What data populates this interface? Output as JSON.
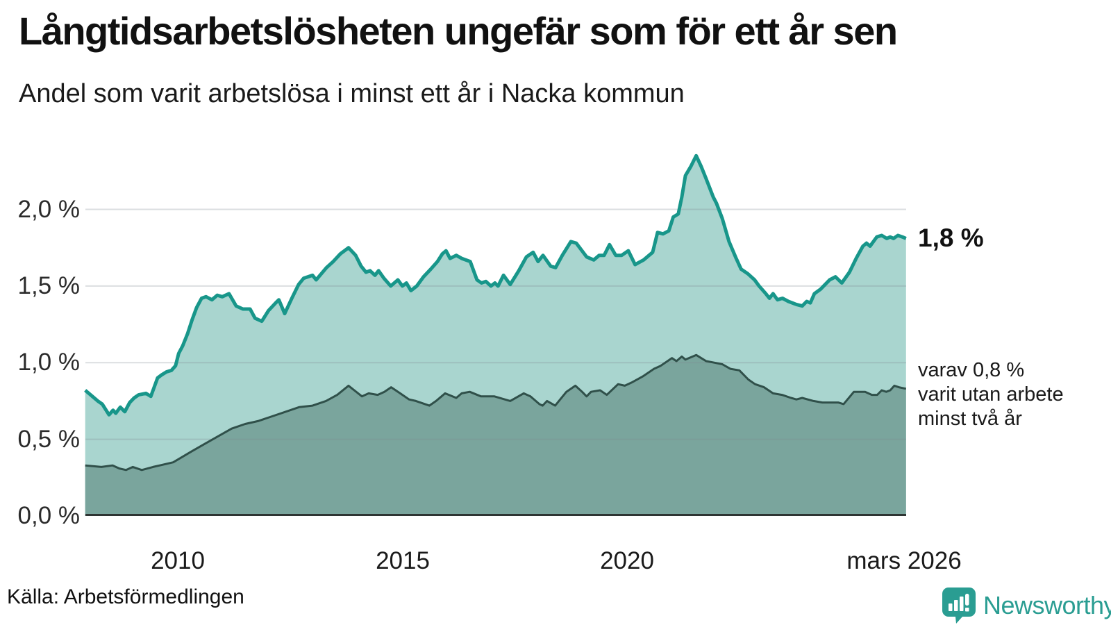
{
  "header": {
    "title": "Långtidsarbetslösheten ungefär som för ett år sen",
    "subtitle": "Andel som varit arbetslösa i minst ett år i Nacka kommun"
  },
  "annotations": {
    "end_value_label": "1,8 %",
    "secondary_note": "varav 0,8 %\nvarit utan arbete\nminst två år"
  },
  "footer": {
    "source": "Källa: Arbetsförmedlingen",
    "brand_name": "Newsworthy"
  },
  "colors": {
    "accent_teal": "#18968a",
    "area_light": "#a9d5cf",
    "area_dark": "#7aa59d",
    "dark_line": "#30504a",
    "baseline": "#2e3533",
    "gridline": "rgba(125,135,145,0.28)",
    "brand_teal": "#2a9d92"
  },
  "chart_data": {
    "type": "area",
    "title": "Långtidsarbetslösheten ungefär som för ett år sen",
    "subtitle": "Andel som varit arbetslösa i minst ett år i Nacka kommun",
    "unit": "%",
    "x_domain": [
      2007.94,
      2026.24
    ],
    "ylim": [
      0,
      2.4
    ],
    "grid": "horizontal",
    "legend_position": "right-annotations",
    "yticks": [
      {
        "value": 0.0,
        "label": "0,0 %"
      },
      {
        "value": 0.5,
        "label": "0,5 %"
      },
      {
        "value": 1.0,
        "label": "1,0 %"
      },
      {
        "value": 1.5,
        "label": "1,5 %"
      },
      {
        "value": 2.0,
        "label": "2,0 %"
      }
    ],
    "xticks": [
      {
        "value": 2010,
        "label": "2010"
      },
      {
        "value": 2015,
        "label": "2015"
      },
      {
        "value": 2020,
        "label": "2020"
      },
      {
        "value": 2026.17,
        "label": "mars 2026"
      }
    ],
    "series": [
      {
        "id": "unemployed_min_one_year",
        "end_label": "1,8 %",
        "end_value": 1.8,
        "line_color": "#18968a",
        "fill_color": "#a9d5cf",
        "line_width": 5,
        "points": [
          [
            2007.94,
            0.82
          ],
          [
            2008.1,
            0.78
          ],
          [
            2008.22,
            0.75
          ],
          [
            2008.32,
            0.73
          ],
          [
            2008.47,
            0.66
          ],
          [
            2008.56,
            0.69
          ],
          [
            2008.62,
            0.67
          ],
          [
            2008.72,
            0.71
          ],
          [
            2008.82,
            0.68
          ],
          [
            2008.93,
            0.74
          ],
          [
            2009.03,
            0.77
          ],
          [
            2009.13,
            0.79
          ],
          [
            2009.29,
            0.8
          ],
          [
            2009.4,
            0.78
          ],
          [
            2009.55,
            0.9
          ],
          [
            2009.64,
            0.92
          ],
          [
            2009.75,
            0.94
          ],
          [
            2009.86,
            0.95
          ],
          [
            2009.95,
            0.98
          ],
          [
            2010.02,
            1.06
          ],
          [
            2010.11,
            1.11
          ],
          [
            2010.22,
            1.19
          ],
          [
            2010.32,
            1.28
          ],
          [
            2010.42,
            1.36
          ],
          [
            2010.53,
            1.42
          ],
          [
            2010.63,
            1.43
          ],
          [
            2010.76,
            1.41
          ],
          [
            2010.88,
            1.44
          ],
          [
            2010.99,
            1.43
          ],
          [
            2011.14,
            1.45
          ],
          [
            2011.3,
            1.37
          ],
          [
            2011.45,
            1.35
          ],
          [
            2011.61,
            1.35
          ],
          [
            2011.72,
            1.29
          ],
          [
            2011.87,
            1.27
          ],
          [
            2012.02,
            1.34
          ],
          [
            2012.18,
            1.39
          ],
          [
            2012.25,
            1.41
          ],
          [
            2012.38,
            1.32
          ],
          [
            2012.54,
            1.42
          ],
          [
            2012.69,
            1.51
          ],
          [
            2012.8,
            1.55
          ],
          [
            2013.0,
            1.57
          ],
          [
            2013.08,
            1.54
          ],
          [
            2013.31,
            1.62
          ],
          [
            2013.46,
            1.66
          ],
          [
            2013.62,
            1.71
          ],
          [
            2013.8,
            1.75
          ],
          [
            2013.96,
            1.7
          ],
          [
            2014.08,
            1.63
          ],
          [
            2014.19,
            1.59
          ],
          [
            2014.28,
            1.6
          ],
          [
            2014.39,
            1.57
          ],
          [
            2014.47,
            1.6
          ],
          [
            2014.59,
            1.55
          ],
          [
            2014.74,
            1.5
          ],
          [
            2014.9,
            1.54
          ],
          [
            2015.0,
            1.5
          ],
          [
            2015.09,
            1.52
          ],
          [
            2015.19,
            1.47
          ],
          [
            2015.32,
            1.5
          ],
          [
            2015.47,
            1.56
          ],
          [
            2015.63,
            1.61
          ],
          [
            2015.78,
            1.66
          ],
          [
            2015.89,
            1.71
          ],
          [
            2015.97,
            1.73
          ],
          [
            2016.06,
            1.68
          ],
          [
            2016.2,
            1.7
          ],
          [
            2016.32,
            1.68
          ],
          [
            2016.51,
            1.66
          ],
          [
            2016.66,
            1.54
          ],
          [
            2016.76,
            1.52
          ],
          [
            2016.86,
            1.53
          ],
          [
            2016.97,
            1.5
          ],
          [
            2017.06,
            1.52
          ],
          [
            2017.13,
            1.5
          ],
          [
            2017.25,
            1.57
          ],
          [
            2017.4,
            1.51
          ],
          [
            2017.59,
            1.6
          ],
          [
            2017.76,
            1.69
          ],
          [
            2017.91,
            1.72
          ],
          [
            2018.02,
            1.66
          ],
          [
            2018.13,
            1.7
          ],
          [
            2018.3,
            1.63
          ],
          [
            2018.41,
            1.62
          ],
          [
            2018.56,
            1.7
          ],
          [
            2018.75,
            1.79
          ],
          [
            2018.87,
            1.78
          ],
          [
            2019.1,
            1.69
          ],
          [
            2019.26,
            1.67
          ],
          [
            2019.38,
            1.7
          ],
          [
            2019.49,
            1.7
          ],
          [
            2019.61,
            1.77
          ],
          [
            2019.75,
            1.7
          ],
          [
            2019.88,
            1.7
          ],
          [
            2020.03,
            1.73
          ],
          [
            2020.18,
            1.64
          ],
          [
            2020.37,
            1.67
          ],
          [
            2020.57,
            1.72
          ],
          [
            2020.68,
            1.85
          ],
          [
            2020.8,
            1.84
          ],
          [
            2020.93,
            1.86
          ],
          [
            2021.03,
            1.95
          ],
          [
            2021.14,
            1.97
          ],
          [
            2021.22,
            2.08
          ],
          [
            2021.3,
            2.22
          ],
          [
            2021.42,
            2.28
          ],
          [
            2021.54,
            2.35
          ],
          [
            2021.65,
            2.28
          ],
          [
            2021.76,
            2.2
          ],
          [
            2021.92,
            2.08
          ],
          [
            2021.99,
            2.04
          ],
          [
            2022.12,
            1.94
          ],
          [
            2022.27,
            1.79
          ],
          [
            2022.43,
            1.68
          ],
          [
            2022.54,
            1.61
          ],
          [
            2022.69,
            1.58
          ],
          [
            2022.84,
            1.54
          ],
          [
            2022.94,
            1.5
          ],
          [
            2023.09,
            1.45
          ],
          [
            2023.17,
            1.42
          ],
          [
            2023.25,
            1.45
          ],
          [
            2023.35,
            1.41
          ],
          [
            2023.46,
            1.42
          ],
          [
            2023.59,
            1.4
          ],
          [
            2023.77,
            1.38
          ],
          [
            2023.9,
            1.37
          ],
          [
            2024.0,
            1.4
          ],
          [
            2024.08,
            1.39
          ],
          [
            2024.17,
            1.45
          ],
          [
            2024.31,
            1.48
          ],
          [
            2024.51,
            1.54
          ],
          [
            2024.64,
            1.56
          ],
          [
            2024.78,
            1.52
          ],
          [
            2024.95,
            1.59
          ],
          [
            2025.1,
            1.68
          ],
          [
            2025.25,
            1.76
          ],
          [
            2025.33,
            1.78
          ],
          [
            2025.41,
            1.76
          ],
          [
            2025.56,
            1.82
          ],
          [
            2025.67,
            1.83
          ],
          [
            2025.78,
            1.81
          ],
          [
            2025.86,
            1.82
          ],
          [
            2025.93,
            1.81
          ],
          [
            2026.03,
            1.83
          ],
          [
            2026.13,
            1.82
          ],
          [
            2026.21,
            1.81
          ]
        ]
      },
      {
        "id": "unemployed_min_two_years",
        "annotation": "varav 0,8 %\nvarit utan arbete\nminst två år",
        "end_value": 0.8,
        "line_color": "#30504a",
        "fill_color": "#7aa59d",
        "line_width": 3,
        "points": [
          [
            2007.94,
            0.33
          ],
          [
            2008.3,
            0.32
          ],
          [
            2008.55,
            0.33
          ],
          [
            2008.7,
            0.31
          ],
          [
            2008.85,
            0.3
          ],
          [
            2009.0,
            0.32
          ],
          [
            2009.2,
            0.3
          ],
          [
            2009.45,
            0.32
          ],
          [
            2009.6,
            0.33
          ],
          [
            2009.9,
            0.35
          ],
          [
            2010.3,
            0.42
          ],
          [
            2010.6,
            0.47
          ],
          [
            2010.9,
            0.52
          ],
          [
            2011.2,
            0.57
          ],
          [
            2011.5,
            0.6
          ],
          [
            2011.8,
            0.62
          ],
          [
            2012.1,
            0.65
          ],
          [
            2012.4,
            0.68
          ],
          [
            2012.7,
            0.71
          ],
          [
            2013.0,
            0.72
          ],
          [
            2013.3,
            0.75
          ],
          [
            2013.55,
            0.79
          ],
          [
            2013.8,
            0.85
          ],
          [
            2014.1,
            0.78
          ],
          [
            2014.25,
            0.8
          ],
          [
            2014.45,
            0.79
          ],
          [
            2014.6,
            0.81
          ],
          [
            2014.75,
            0.84
          ],
          [
            2014.95,
            0.8
          ],
          [
            2015.15,
            0.76
          ],
          [
            2015.3,
            0.75
          ],
          [
            2015.6,
            0.72
          ],
          [
            2015.75,
            0.75
          ],
          [
            2015.95,
            0.8
          ],
          [
            2016.2,
            0.77
          ],
          [
            2016.32,
            0.8
          ],
          [
            2016.5,
            0.81
          ],
          [
            2016.75,
            0.78
          ],
          [
            2017.05,
            0.78
          ],
          [
            2017.4,
            0.75
          ],
          [
            2017.7,
            0.8
          ],
          [
            2017.85,
            0.78
          ],
          [
            2018.05,
            0.73
          ],
          [
            2018.12,
            0.72
          ],
          [
            2018.22,
            0.75
          ],
          [
            2018.4,
            0.72
          ],
          [
            2018.65,
            0.81
          ],
          [
            2018.85,
            0.85
          ],
          [
            2019.0,
            0.81
          ],
          [
            2019.1,
            0.78
          ],
          [
            2019.2,
            0.81
          ],
          [
            2019.4,
            0.82
          ],
          [
            2019.55,
            0.79
          ],
          [
            2019.8,
            0.86
          ],
          [
            2019.95,
            0.85
          ],
          [
            2020.1,
            0.87
          ],
          [
            2020.35,
            0.91
          ],
          [
            2020.6,
            0.96
          ],
          [
            2020.75,
            0.98
          ],
          [
            2021.0,
            1.03
          ],
          [
            2021.1,
            1.01
          ],
          [
            2021.22,
            1.04
          ],
          [
            2021.3,
            1.02
          ],
          [
            2021.54,
            1.05
          ],
          [
            2021.76,
            1.01
          ],
          [
            2021.95,
            1.0
          ],
          [
            2022.12,
            0.99
          ],
          [
            2022.3,
            0.96
          ],
          [
            2022.5,
            0.95
          ],
          [
            2022.7,
            0.89
          ],
          [
            2022.85,
            0.86
          ],
          [
            2023.05,
            0.84
          ],
          [
            2023.25,
            0.8
          ],
          [
            2023.45,
            0.79
          ],
          [
            2023.65,
            0.77
          ],
          [
            2023.77,
            0.76
          ],
          [
            2023.9,
            0.77
          ],
          [
            2024.15,
            0.75
          ],
          [
            2024.35,
            0.74
          ],
          [
            2024.7,
            0.74
          ],
          [
            2024.82,
            0.73
          ],
          [
            2025.05,
            0.81
          ],
          [
            2025.3,
            0.81
          ],
          [
            2025.45,
            0.79
          ],
          [
            2025.57,
            0.79
          ],
          [
            2025.67,
            0.82
          ],
          [
            2025.77,
            0.81
          ],
          [
            2025.86,
            0.82
          ],
          [
            2025.95,
            0.85
          ],
          [
            2026.05,
            0.84
          ],
          [
            2026.21,
            0.83
          ]
        ]
      }
    ]
  }
}
